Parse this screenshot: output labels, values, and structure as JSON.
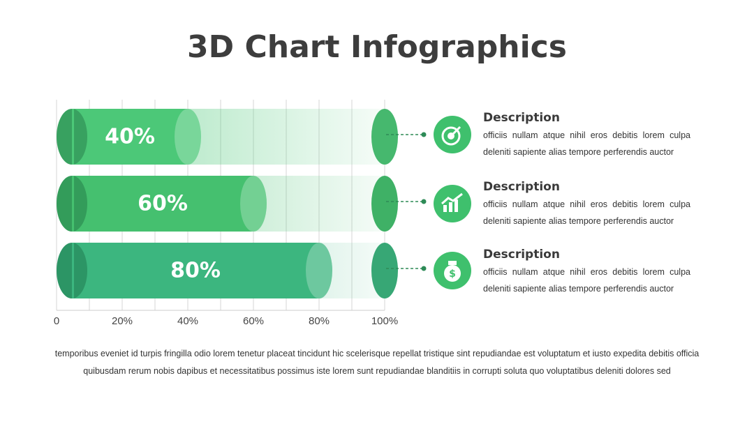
{
  "chart_data": {
    "type": "bar",
    "orientation": "horizontal",
    "title": "3D Chart Infographics",
    "values": [
      40,
      60,
      80
    ],
    "value_labels": [
      "40%",
      "60%",
      "80%"
    ],
    "colors": [
      "#4cc878",
      "#45c06f",
      "#3cb67f"
    ],
    "xlim": [
      0,
      100
    ],
    "xticks": [
      0,
      {
        "value": 20,
        "label": "20%"
      },
      {
        "value": 40,
        "label": "40%"
      },
      {
        "value": 60,
        "label": "60%"
      },
      {
        "value": 80,
        "label": "80%"
      },
      {
        "value": 100,
        "label": "100%"
      }
    ],
    "grid": true
  },
  "descriptions": [
    {
      "title": "Description",
      "text": "officiis nullam atque nihil eros debitis lorem culpa deleniti sapiente alias tempore perferendis auctor"
    },
    {
      "title": "Description",
      "text": "officiis nullam atque nihil eros debitis lorem culpa deleniti sapiente alias tempore perferendis auctor"
    },
    {
      "title": "Description",
      "text": "officiis nullam atque nihil eros debitis lorem culpa deleniti sapiente alias tempore perferendis auctor"
    }
  ],
  "footer": "temporibus eveniet id turpis fringilla odio lorem tenetur placeat tincidunt hic scelerisque repellat tristique sint repudiandae est voluptatum et iusto expedita debitis officia quibusdam rerum nobis dapibus et necessitatibus possimus iste lorem sunt repudiandae blanditiis in corrupti soluta quo voluptatibus deleniti dolores sed"
}
